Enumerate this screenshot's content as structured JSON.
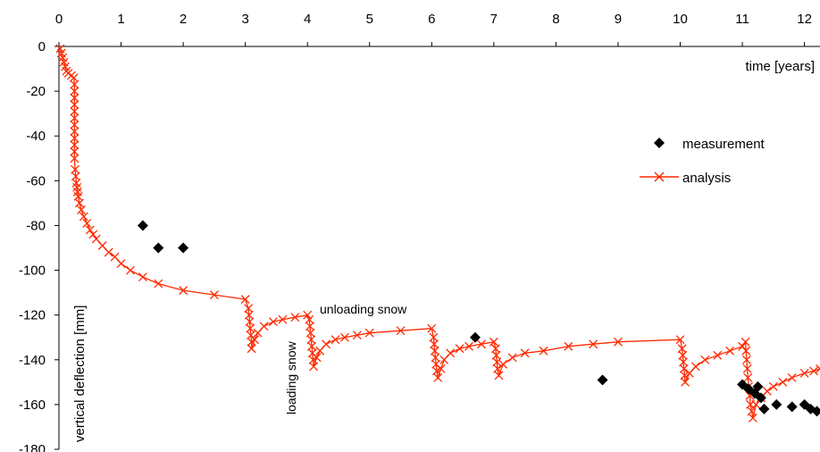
{
  "chart_data": {
    "type": "scatter",
    "xlabel": "time [years]",
    "ylabel": "vertical deflection [mm]",
    "xlim": [
      0,
      12.25
    ],
    "ylim": [
      -180,
      0
    ],
    "x_ticks": [
      "0",
      "1",
      "2",
      "3",
      "4",
      "5",
      "6",
      "7",
      "8",
      "9",
      "10",
      "11",
      "12"
    ],
    "y_ticks": [
      "0",
      "-20",
      "-40",
      "-60",
      "-80",
      "-100",
      "-120",
      "-140",
      "-160",
      "-180"
    ],
    "annotations": [
      {
        "text": "unloading snow"
      },
      {
        "text": "loading snow"
      }
    ],
    "legend": {
      "placement": "right"
    },
    "series": [
      {
        "name": "measurement",
        "marker": "diamond",
        "color": "#000000",
        "points": [
          [
            1.35,
            -80
          ],
          [
            1.6,
            -90
          ],
          [
            2.0,
            -90
          ],
          [
            6.7,
            -130
          ],
          [
            8.75,
            -149
          ],
          [
            11.0,
            -151
          ],
          [
            11.1,
            -153
          ],
          [
            11.2,
            -155
          ],
          [
            11.25,
            -152
          ],
          [
            11.3,
            -157
          ],
          [
            11.35,
            -162
          ],
          [
            11.55,
            -160
          ],
          [
            11.8,
            -161
          ],
          [
            12.0,
            -160
          ],
          [
            12.1,
            -162
          ],
          [
            12.2,
            -163
          ]
        ]
      },
      {
        "name": "analysis",
        "marker": "x",
        "color": "#ff2a00",
        "points": [
          [
            0.02,
            -1
          ],
          [
            0.04,
            -3
          ],
          [
            0.06,
            -5
          ],
          [
            0.08,
            -7
          ],
          [
            0.1,
            -9
          ],
          [
            0.12,
            -11
          ],
          [
            0.15,
            -12
          ],
          [
            0.2,
            -13
          ],
          [
            0.24,
            -14
          ],
          [
            0.25,
            -17
          ],
          [
            0.25,
            -20
          ],
          [
            0.25,
            -23
          ],
          [
            0.25,
            -26
          ],
          [
            0.25,
            -29
          ],
          [
            0.25,
            -32
          ],
          [
            0.25,
            -35
          ],
          [
            0.25,
            -38
          ],
          [
            0.25,
            -41
          ],
          [
            0.25,
            -44
          ],
          [
            0.25,
            -47
          ],
          [
            0.25,
            -50
          ],
          [
            0.26,
            -55
          ],
          [
            0.27,
            -58
          ],
          [
            0.28,
            -61
          ],
          [
            0.29,
            -63
          ],
          [
            0.3,
            -65
          ],
          [
            0.31,
            -67
          ],
          [
            0.33,
            -70
          ],
          [
            0.36,
            -73
          ],
          [
            0.4,
            -76
          ],
          [
            0.45,
            -79
          ],
          [
            0.5,
            -82
          ],
          [
            0.55,
            -84
          ],
          [
            0.6,
            -86
          ],
          [
            0.7,
            -89
          ],
          [
            0.8,
            -92
          ],
          [
            0.9,
            -94
          ],
          [
            1.0,
            -97
          ],
          [
            1.15,
            -100
          ],
          [
            1.35,
            -103
          ],
          [
            1.6,
            -106
          ],
          [
            2.0,
            -109
          ],
          [
            2.5,
            -111
          ],
          [
            3.0,
            -113
          ],
          [
            3.05,
            -117
          ],
          [
            3.06,
            -120
          ],
          [
            3.07,
            -123
          ],
          [
            3.08,
            -126
          ],
          [
            3.09,
            -129
          ],
          [
            3.1,
            -132
          ],
          [
            3.1,
            -135
          ],
          [
            3.15,
            -131
          ],
          [
            3.2,
            -128
          ],
          [
            3.3,
            -125
          ],
          [
            3.45,
            -123
          ],
          [
            3.6,
            -122
          ],
          [
            3.8,
            -121
          ],
          [
            4.0,
            -120
          ],
          [
            4.03,
            -122
          ],
          [
            4.04,
            -125
          ],
          [
            4.05,
            -128
          ],
          [
            4.06,
            -131
          ],
          [
            4.07,
            -134
          ],
          [
            4.08,
            -137
          ],
          [
            4.09,
            -140
          ],
          [
            4.1,
            -143
          ],
          [
            4.15,
            -139
          ],
          [
            4.2,
            -136
          ],
          [
            4.3,
            -133
          ],
          [
            4.45,
            -131
          ],
          [
            4.6,
            -130
          ],
          [
            4.8,
            -129
          ],
          [
            5.0,
            -128
          ],
          [
            5.5,
            -127
          ],
          [
            6.0,
            -126
          ],
          [
            6.03,
            -130
          ],
          [
            6.04,
            -133
          ],
          [
            6.05,
            -136
          ],
          [
            6.06,
            -139
          ],
          [
            6.07,
            -142
          ],
          [
            6.08,
            -145
          ],
          [
            6.1,
            -148
          ],
          [
            6.15,
            -144
          ],
          [
            6.2,
            -140
          ],
          [
            6.3,
            -137
          ],
          [
            6.45,
            -135
          ],
          [
            6.6,
            -134
          ],
          [
            6.8,
            -133
          ],
          [
            7.0,
            -132
          ],
          [
            7.03,
            -135
          ],
          [
            7.04,
            -138
          ],
          [
            7.05,
            -141
          ],
          [
            7.06,
            -144
          ],
          [
            7.08,
            -147
          ],
          [
            7.15,
            -142
          ],
          [
            7.3,
            -139
          ],
          [
            7.5,
            -137
          ],
          [
            7.8,
            -136
          ],
          [
            8.2,
            -134
          ],
          [
            8.6,
            -133
          ],
          [
            9.0,
            -132
          ],
          [
            10.0,
            -131
          ],
          [
            10.03,
            -135
          ],
          [
            10.04,
            -138
          ],
          [
            10.05,
            -141
          ],
          [
            10.06,
            -144
          ],
          [
            10.07,
            -147
          ],
          [
            10.08,
            -150
          ],
          [
            10.15,
            -146
          ],
          [
            10.25,
            -143
          ],
          [
            10.4,
            -140
          ],
          [
            10.6,
            -138
          ],
          [
            10.8,
            -136
          ],
          [
            11.0,
            -134
          ],
          [
            11.05,
            -132
          ],
          [
            11.06,
            -136
          ],
          [
            11.07,
            -140
          ],
          [
            11.08,
            -144
          ],
          [
            11.09,
            -148
          ],
          [
            11.1,
            -152
          ],
          [
            11.12,
            -156
          ],
          [
            11.13,
            -160
          ],
          [
            11.15,
            -163
          ],
          [
            11.17,
            -166
          ],
          [
            11.22,
            -160
          ],
          [
            11.3,
            -157
          ],
          [
            11.4,
            -154
          ],
          [
            11.5,
            -152
          ],
          [
            11.65,
            -150
          ],
          [
            11.8,
            -148
          ],
          [
            12.0,
            -146
          ],
          [
            12.15,
            -145
          ],
          [
            12.25,
            -144
          ]
        ]
      }
    ]
  }
}
